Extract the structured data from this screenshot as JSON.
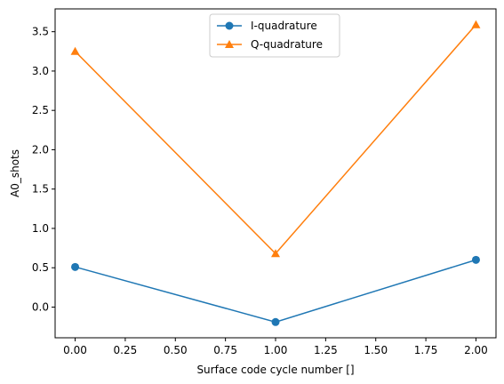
{
  "chart_data": {
    "type": "line",
    "title": "",
    "xlabel": "Surface code cycle number []",
    "ylabel": "A0_shots",
    "x": [
      0,
      1,
      2
    ],
    "xlim": [
      -0.1,
      2.1
    ],
    "ylim": [
      -0.39,
      3.79
    ],
    "xticks": [
      0.0,
      0.25,
      0.5,
      0.75,
      1.0,
      1.25,
      1.5,
      1.75,
      2.0
    ],
    "xtick_labels": [
      "0.00",
      "0.25",
      "0.50",
      "0.75",
      "1.00",
      "1.25",
      "1.50",
      "1.75",
      "2.00"
    ],
    "yticks": [
      0.0,
      0.5,
      1.0,
      1.5,
      2.0,
      2.5,
      3.0,
      3.5
    ],
    "ytick_labels": [
      "0.0",
      "0.5",
      "1.0",
      "1.5",
      "2.0",
      "2.5",
      "3.0",
      "3.5"
    ],
    "grid": false,
    "legend_position": "top-center",
    "series": [
      {
        "name": "I-quadrature",
        "values": [
          0.51,
          -0.19,
          0.6
        ],
        "color": "#1f77b4",
        "marker": "circle"
      },
      {
        "name": "Q-quadrature",
        "values": [
          3.25,
          0.68,
          3.59
        ],
        "color": "#ff7f0e",
        "marker": "triangle"
      }
    ]
  }
}
